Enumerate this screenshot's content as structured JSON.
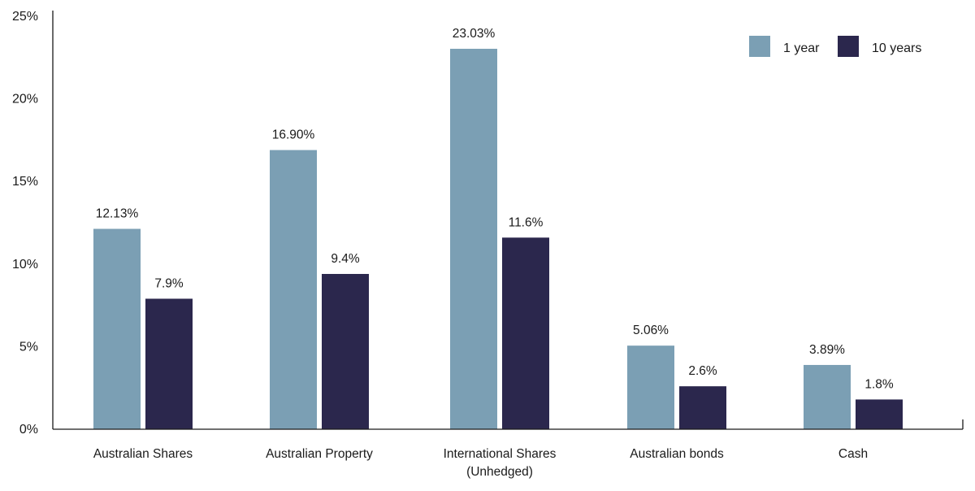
{
  "chart_data": {
    "type": "bar",
    "title": "",
    "xlabel": "",
    "ylabel": "",
    "ylim": [
      0,
      25
    ],
    "yticks": [
      "0%",
      "5%",
      "10%",
      "15%",
      "20%",
      "25%"
    ],
    "ytick_values": [
      0,
      5,
      10,
      15,
      20,
      25
    ],
    "grid": false,
    "legend_position": "top-right",
    "categories": [
      [
        "Australian Shares"
      ],
      [
        "Australian Property"
      ],
      [
        "International Shares",
        "(Unhedged)"
      ],
      [
        "Australian bonds"
      ],
      [
        "Cash"
      ]
    ],
    "series": [
      {
        "name": "1 year",
        "color": "#7b9fb4",
        "values": [
          12.13,
          16.9,
          23.03,
          5.06,
          3.89
        ],
        "labels": [
          "12.13%",
          "16.90%",
          "23.03%",
          "5.06%",
          "3.89%"
        ]
      },
      {
        "name": "10 years",
        "color": "#2b274d",
        "values": [
          7.9,
          9.4,
          11.6,
          2.6,
          1.8
        ],
        "labels": [
          "7.9%",
          "9.4%",
          "11.6%",
          "2.6%",
          "1.8%"
        ]
      }
    ]
  }
}
